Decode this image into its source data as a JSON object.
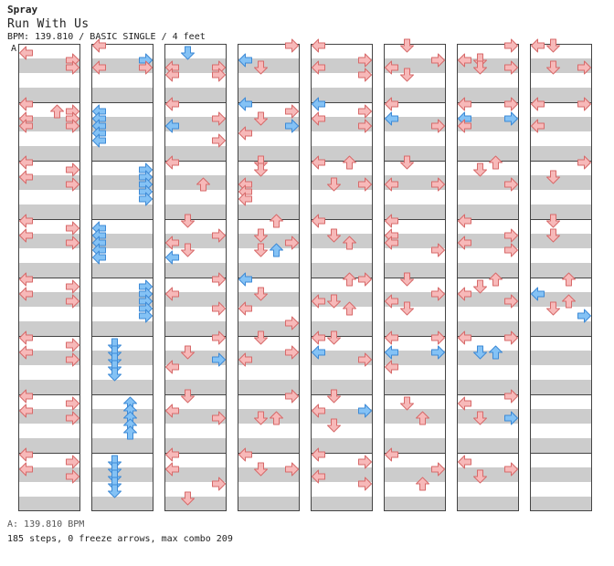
{
  "header": {
    "artist": "Spray",
    "title": "Run With Us",
    "info": "BPM: 139.810 / BASIC SINGLE / 4 feet"
  },
  "marker": "A",
  "footer": {
    "bpm": "A: 139.810 BPM",
    "stats": "185 steps, 0 freeze arrows, max combo 209"
  },
  "colors": {
    "red_fill": "#f7b9b9",
    "red_stroke": "#d76a6a",
    "blue_fill": "#84c2f5",
    "blue_stroke": "#3d8ad6",
    "stripe": "#cccccc",
    "border": "#444444"
  },
  "chart_data": {
    "type": "table",
    "lanes": [
      "left",
      "down",
      "up",
      "right"
    ],
    "columns": 8,
    "measures_per_column": 8,
    "rows_per_measure": 16,
    "notes": [
      [
        [
          0,
          2,
          0,
          1
        ],
        [
          0,
          4,
          3,
          1
        ],
        [
          0,
          6,
          3,
          1
        ],
        [
          1,
          0,
          0,
          1
        ],
        [
          1,
          2,
          2,
          1
        ],
        [
          1,
          2,
          3,
          1
        ],
        [
          1,
          4,
          0,
          1
        ],
        [
          1,
          4,
          3,
          1
        ],
        [
          1,
          6,
          0,
          1
        ],
        [
          1,
          6,
          3,
          1
        ],
        [
          2,
          0,
          0,
          1
        ],
        [
          2,
          2,
          3,
          1
        ],
        [
          2,
          4,
          0,
          1
        ],
        [
          2,
          6,
          3,
          1
        ],
        [
          3,
          0,
          0,
          1
        ],
        [
          3,
          2,
          3,
          1
        ],
        [
          3,
          4,
          0,
          1
        ],
        [
          3,
          6,
          3,
          1
        ],
        [
          4,
          0,
          0,
          1
        ],
        [
          4,
          2,
          3,
          1
        ],
        [
          4,
          4,
          0,
          1
        ],
        [
          4,
          6,
          3,
          1
        ],
        [
          5,
          0,
          0,
          1
        ],
        [
          5,
          2,
          3,
          1
        ],
        [
          5,
          4,
          0,
          1
        ],
        [
          5,
          6,
          3,
          1
        ],
        [
          6,
          0,
          0,
          1
        ],
        [
          6,
          2,
          3,
          1
        ],
        [
          6,
          4,
          0,
          1
        ],
        [
          6,
          6,
          3,
          1
        ],
        [
          7,
          0,
          0,
          1
        ],
        [
          7,
          2,
          3,
          1
        ],
        [
          7,
          4,
          0,
          1
        ],
        [
          7,
          6,
          3,
          1
        ]
      ],
      [
        [
          0,
          0,
          0,
          1
        ],
        [
          0,
          4,
          3,
          0
        ],
        [
          0,
          6,
          0,
          1
        ],
        [
          0,
          6,
          3,
          1
        ],
        [
          1,
          2,
          0,
          0
        ],
        [
          1,
          4,
          0,
          0
        ],
        [
          1,
          6,
          0,
          0
        ],
        [
          1,
          8,
          0,
          0
        ],
        [
          1,
          10,
          0,
          0
        ],
        [
          2,
          2,
          3,
          0
        ],
        [
          2,
          4,
          3,
          0
        ],
        [
          2,
          6,
          3,
          0
        ],
        [
          2,
          8,
          3,
          0
        ],
        [
          2,
          10,
          3,
          0
        ],
        [
          3,
          2,
          0,
          0
        ],
        [
          3,
          4,
          0,
          0
        ],
        [
          3,
          6,
          0,
          0
        ],
        [
          3,
          8,
          0,
          0
        ],
        [
          3,
          10,
          0,
          0
        ],
        [
          4,
          2,
          3,
          0
        ],
        [
          4,
          4,
          3,
          0
        ],
        [
          4,
          6,
          3,
          0
        ],
        [
          4,
          8,
          3,
          0
        ],
        [
          4,
          10,
          3,
          0
        ],
        [
          5,
          2,
          1,
          0
        ],
        [
          5,
          4,
          1,
          0
        ],
        [
          5,
          6,
          1,
          0
        ],
        [
          5,
          8,
          1,
          0
        ],
        [
          5,
          10,
          1,
          0
        ],
        [
          6,
          2,
          2,
          0
        ],
        [
          6,
          4,
          2,
          0
        ],
        [
          6,
          6,
          2,
          0
        ],
        [
          6,
          8,
          2,
          0
        ],
        [
          6,
          10,
          2,
          0
        ],
        [
          7,
          2,
          1,
          0
        ],
        [
          7,
          4,
          1,
          0
        ],
        [
          7,
          6,
          1,
          0
        ],
        [
          7,
          8,
          1,
          0
        ],
        [
          7,
          10,
          1,
          0
        ]
      ],
      [
        [
          0,
          2,
          1,
          0
        ],
        [
          0,
          6,
          0,
          1
        ],
        [
          0,
          6,
          3,
          1
        ],
        [
          0,
          8,
          0,
          1
        ],
        [
          0,
          8,
          3,
          1
        ],
        [
          1,
          0,
          0,
          1
        ],
        [
          1,
          4,
          3,
          1
        ],
        [
          1,
          6,
          0,
          0
        ],
        [
          1,
          10,
          3,
          1
        ],
        [
          2,
          0,
          0,
          1
        ],
        [
          2,
          6,
          2,
          1
        ],
        [
          3,
          0,
          1,
          1
        ],
        [
          3,
          4,
          3,
          1
        ],
        [
          3,
          6,
          0,
          1
        ],
        [
          3,
          8,
          1,
          1
        ],
        [
          3,
          10,
          0,
          0
        ],
        [
          4,
          0,
          3,
          1
        ],
        [
          4,
          4,
          0,
          1
        ],
        [
          4,
          8,
          3,
          1
        ],
        [
          5,
          0,
          3,
          1
        ],
        [
          5,
          4,
          1,
          1
        ],
        [
          5,
          6,
          3,
          0
        ],
        [
          5,
          8,
          0,
          1
        ],
        [
          6,
          0,
          1,
          1
        ],
        [
          6,
          4,
          0,
          1
        ],
        [
          6,
          6,
          3,
          1
        ],
        [
          7,
          0,
          0,
          1
        ],
        [
          7,
          4,
          0,
          1
        ],
        [
          7,
          8,
          3,
          1
        ],
        [
          7,
          12,
          1,
          1
        ]
      ],
      [
        [
          0,
          0,
          3,
          1
        ],
        [
          0,
          4,
          0,
          0
        ],
        [
          0,
          6,
          1,
          1
        ],
        [
          1,
          0,
          0,
          0
        ],
        [
          1,
          2,
          3,
          1
        ],
        [
          1,
          4,
          1,
          1
        ],
        [
          1,
          6,
          3,
          0
        ],
        [
          1,
          8,
          0,
          1
        ],
        [
          2,
          0,
          1,
          1
        ],
        [
          2,
          2,
          1,
          1
        ],
        [
          2,
          6,
          0,
          1
        ],
        [
          2,
          8,
          0,
          1
        ],
        [
          2,
          10,
          0,
          1
        ],
        [
          3,
          0,
          2,
          1
        ],
        [
          3,
          4,
          1,
          1
        ],
        [
          3,
          6,
          3,
          1
        ],
        [
          3,
          8,
          1,
          1
        ],
        [
          3,
          8,
          2,
          0
        ],
        [
          4,
          0,
          0,
          0
        ],
        [
          4,
          4,
          1,
          1
        ],
        [
          4,
          8,
          0,
          1
        ],
        [
          4,
          12,
          3,
          1
        ],
        [
          5,
          0,
          1,
          1
        ],
        [
          5,
          4,
          3,
          1
        ],
        [
          5,
          6,
          0,
          1
        ],
        [
          6,
          0,
          3,
          1
        ],
        [
          6,
          6,
          1,
          1
        ],
        [
          6,
          6,
          2,
          1
        ],
        [
          7,
          0,
          0,
          1
        ],
        [
          7,
          4,
          1,
          1
        ],
        [
          7,
          4,
          3,
          1
        ]
      ],
      [
        [
          0,
          0,
          0,
          1
        ],
        [
          0,
          4,
          3,
          1
        ],
        [
          0,
          6,
          0,
          1
        ],
        [
          0,
          8,
          3,
          1
        ],
        [
          1,
          0,
          0,
          0
        ],
        [
          1,
          2,
          3,
          1
        ],
        [
          1,
          4,
          0,
          1
        ],
        [
          1,
          6,
          3,
          1
        ],
        [
          2,
          0,
          0,
          1
        ],
        [
          2,
          0,
          2,
          1
        ],
        [
          2,
          6,
          1,
          1
        ],
        [
          2,
          6,
          3,
          1
        ],
        [
          3,
          0,
          0,
          1
        ],
        [
          3,
          4,
          1,
          1
        ],
        [
          3,
          6,
          2,
          1
        ],
        [
          4,
          0,
          2,
          1
        ],
        [
          4,
          0,
          3,
          1
        ],
        [
          4,
          6,
          0,
          1
        ],
        [
          4,
          6,
          1,
          1
        ],
        [
          4,
          8,
          2,
          1
        ],
        [
          5,
          0,
          0,
          1
        ],
        [
          5,
          0,
          1,
          1
        ],
        [
          5,
          4,
          0,
          0
        ],
        [
          5,
          6,
          3,
          1
        ],
        [
          6,
          0,
          1,
          1
        ],
        [
          6,
          4,
          0,
          1
        ],
        [
          6,
          4,
          3,
          0
        ],
        [
          6,
          8,
          1,
          1
        ],
        [
          7,
          0,
          0,
          1
        ],
        [
          7,
          2,
          3,
          1
        ],
        [
          7,
          6,
          0,
          1
        ],
        [
          7,
          8,
          3,
          1
        ]
      ],
      [
        [
          0,
          0,
          1,
          1
        ],
        [
          0,
          4,
          3,
          1
        ],
        [
          0,
          6,
          0,
          1
        ],
        [
          0,
          8,
          1,
          1
        ],
        [
          1,
          0,
          0,
          1
        ],
        [
          1,
          4,
          0,
          0
        ],
        [
          1,
          6,
          3,
          1
        ],
        [
          2,
          0,
          1,
          1
        ],
        [
          2,
          6,
          0,
          1
        ],
        [
          2,
          6,
          3,
          1
        ],
        [
          3,
          0,
          0,
          1
        ],
        [
          3,
          4,
          0,
          1
        ],
        [
          3,
          6,
          0,
          1
        ],
        [
          3,
          8,
          3,
          1
        ],
        [
          4,
          0,
          1,
          1
        ],
        [
          4,
          4,
          3,
          1
        ],
        [
          4,
          6,
          0,
          1
        ],
        [
          4,
          8,
          1,
          1
        ],
        [
          5,
          0,
          0,
          1
        ],
        [
          5,
          0,
          3,
          1
        ],
        [
          5,
          4,
          0,
          0
        ],
        [
          5,
          4,
          3,
          0
        ],
        [
          5,
          8,
          0,
          1
        ],
        [
          6,
          2,
          1,
          1
        ],
        [
          6,
          6,
          2,
          1
        ],
        [
          7,
          0,
          0,
          1
        ],
        [
          7,
          4,
          3,
          1
        ],
        [
          7,
          8,
          2,
          1
        ]
      ],
      [
        [
          0,
          0,
          3,
          1
        ],
        [
          0,
          4,
          0,
          1
        ],
        [
          0,
          4,
          1,
          1
        ],
        [
          0,
          6,
          1,
          1
        ],
        [
          0,
          6,
          3,
          1
        ],
        [
          1,
          0,
          0,
          1
        ],
        [
          1,
          0,
          3,
          1
        ],
        [
          1,
          4,
          0,
          0
        ],
        [
          1,
          4,
          3,
          0
        ],
        [
          1,
          6,
          0,
          1
        ],
        [
          2,
          0,
          2,
          1
        ],
        [
          2,
          2,
          1,
          1
        ],
        [
          2,
          6,
          3,
          1
        ],
        [
          3,
          0,
          0,
          1
        ],
        [
          3,
          4,
          3,
          1
        ],
        [
          3,
          6,
          0,
          1
        ],
        [
          3,
          8,
          3,
          1
        ],
        [
          4,
          0,
          2,
          1
        ],
        [
          4,
          2,
          1,
          1
        ],
        [
          4,
          4,
          0,
          1
        ],
        [
          4,
          6,
          3,
          1
        ],
        [
          5,
          0,
          0,
          1
        ],
        [
          5,
          0,
          3,
          1
        ],
        [
          5,
          4,
          1,
          0
        ],
        [
          5,
          4,
          2,
          0
        ],
        [
          6,
          0,
          3,
          1
        ],
        [
          6,
          2,
          0,
          1
        ],
        [
          6,
          6,
          1,
          1
        ],
        [
          6,
          6,
          3,
          0
        ],
        [
          7,
          2,
          0,
          1
        ],
        [
          7,
          4,
          3,
          1
        ],
        [
          7,
          6,
          1,
          1
        ]
      ],
      [
        [
          0,
          0,
          0,
          1
        ],
        [
          0,
          0,
          1,
          1
        ],
        [
          0,
          6,
          1,
          1
        ],
        [
          0,
          6,
          3,
          1
        ],
        [
          1,
          0,
          0,
          1
        ],
        [
          1,
          0,
          3,
          1
        ],
        [
          1,
          6,
          0,
          1
        ],
        [
          2,
          0,
          3,
          1
        ],
        [
          2,
          4,
          1,
          1
        ],
        [
          3,
          0,
          1,
          1
        ],
        [
          3,
          4,
          1,
          1
        ],
        [
          4,
          0,
          2,
          1
        ],
        [
          4,
          4,
          0,
          0
        ],
        [
          4,
          6,
          2,
          1
        ],
        [
          4,
          8,
          1,
          1
        ],
        [
          4,
          10,
          3,
          0
        ]
      ]
    ]
  }
}
